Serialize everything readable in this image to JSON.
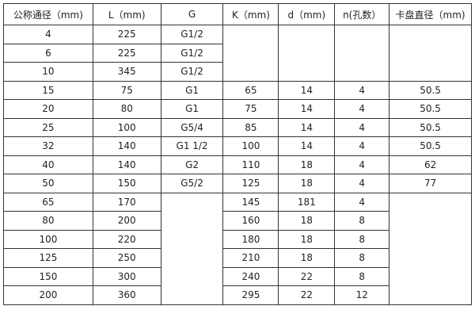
{
  "table": {
    "headers": [
      "公称通径（mm)",
      "L（mm)",
      "G",
      "K（mm)",
      "d（mm)",
      "n(孔数）",
      "卡盘直径（mm)"
    ],
    "rows": [
      [
        "4",
        "225",
        "G1/2",
        "",
        "",
        "",
        ""
      ],
      [
        "6",
        "225",
        "G1/2",
        null,
        null,
        null,
        null
      ],
      [
        "10",
        "345",
        "G1/2",
        null,
        null,
        null,
        null
      ],
      [
        "15",
        "75",
        "G1",
        "65",
        "14",
        "4",
        "50.5"
      ],
      [
        "20",
        "80",
        "G1",
        "75",
        "14",
        "4",
        "50.5"
      ],
      [
        "25",
        "100",
        "G5/4",
        "85",
        "14",
        "4",
        "50.5"
      ],
      [
        "32",
        "140",
        "G1  1/2",
        "100",
        "14",
        "4",
        "50.5"
      ],
      [
        "40",
        "140",
        "G2",
        "110",
        "18",
        "4",
        "62"
      ],
      [
        "50",
        "150",
        "G5/2",
        "125",
        "18",
        "4",
        "77"
      ],
      [
        "65",
        "170",
        "",
        "145",
        "181",
        "4",
        ""
      ],
      [
        "80",
        "200",
        null,
        "160",
        "18",
        "8",
        null
      ],
      [
        "100",
        "220",
        null,
        "180",
        "18",
        "8",
        null
      ],
      [
        "125",
        "250",
        null,
        "210",
        "18",
        "8",
        null
      ],
      [
        "150",
        "300",
        null,
        "240",
        "22",
        "8",
        null
      ],
      [
        "200",
        "360",
        null,
        "295",
        "22",
        "12",
        null
      ]
    ]
  }
}
